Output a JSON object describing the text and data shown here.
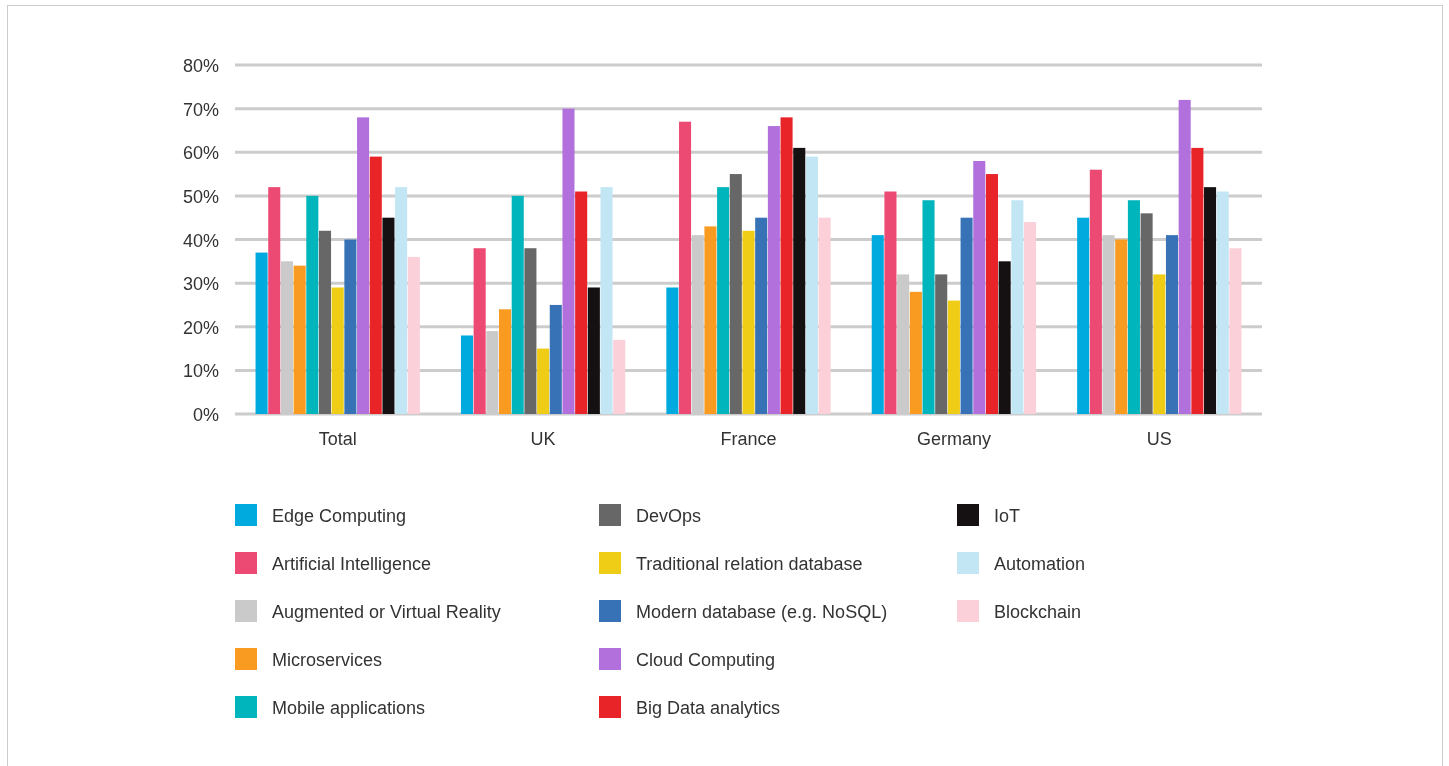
{
  "chart_data": {
    "type": "bar",
    "categories": [
      "Total",
      "UK",
      "France",
      "Germany",
      "US"
    ],
    "series": [
      {
        "name": "Edge Computing",
        "color": "#00a9de",
        "values": [
          37,
          18,
          29,
          41,
          45
        ]
      },
      {
        "name": "Artificial Intelligence",
        "color": "#ec4a72",
        "values": [
          52,
          38,
          67,
          51,
          56
        ]
      },
      {
        "name": "Augmented or Virtual Reality",
        "color": "#cbcaca",
        "values": [
          35,
          19,
          41,
          32,
          41
        ]
      },
      {
        "name": "Microservices",
        "color": "#f89b20",
        "values": [
          34,
          24,
          43,
          28,
          40
        ]
      },
      {
        "name": "Mobile applications",
        "color": "#00b5bb",
        "values": [
          50,
          50,
          52,
          49,
          49
        ]
      },
      {
        "name": "DevOps",
        "color": "#676767",
        "values": [
          42,
          38,
          55,
          32,
          46
        ]
      },
      {
        "name": "Traditional relation database",
        "color": "#efcd17",
        "values": [
          29,
          15,
          42,
          26,
          32
        ]
      },
      {
        "name": "Modern database (e.g. NoSQL)",
        "color": "#3772b7",
        "values": [
          40,
          25,
          45,
          45,
          41
        ]
      },
      {
        "name": "Cloud Computing",
        "color": "#b170dc",
        "values": [
          68,
          70,
          66,
          58,
          72
        ]
      },
      {
        "name": "Big Data analytics",
        "color": "#e82428",
        "values": [
          59,
          51,
          68,
          55,
          61
        ]
      },
      {
        "name": "IoT",
        "color": "#151112",
        "values": [
          45,
          29,
          61,
          35,
          52
        ]
      },
      {
        "name": "Automation",
        "color": "#c2e6f4",
        "values": [
          52,
          52,
          59,
          49,
          51
        ]
      },
      {
        "name": "Blockchain",
        "color": "#fbd0d9",
        "values": [
          36,
          17,
          45,
          44,
          38
        ]
      }
    ],
    "ylim": [
      0,
      80
    ],
    "yticks": [
      {
        "value": 0,
        "label": "0%"
      },
      {
        "value": 10,
        "label": "10%"
      },
      {
        "value": 20,
        "label": "20%"
      },
      {
        "value": 30,
        "label": "30%"
      },
      {
        "value": 40,
        "label": "40%"
      },
      {
        "value": 50,
        "label": "50%"
      },
      {
        "value": 60,
        "label": "60%"
      },
      {
        "value": 70,
        "label": "70%"
      },
      {
        "value": 80,
        "label": "80%"
      }
    ],
    "grid": "y",
    "legend": "bottom"
  }
}
